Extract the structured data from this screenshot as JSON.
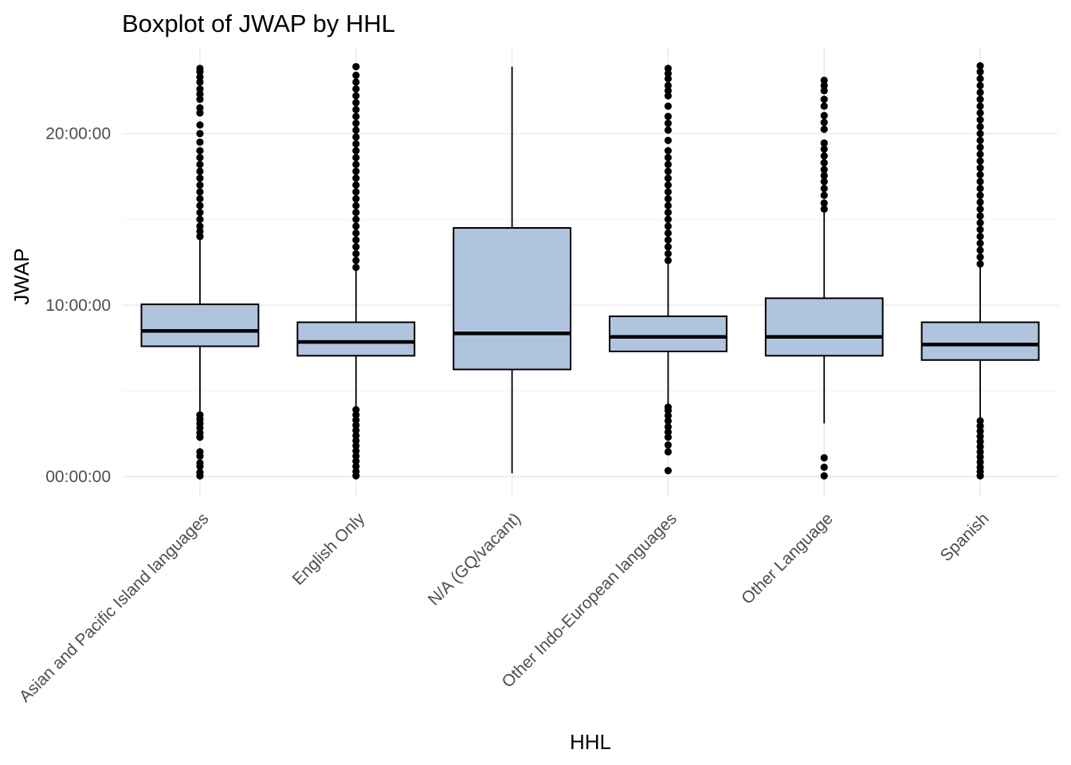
{
  "chart_data": {
    "type": "boxplot",
    "title": "Boxplot of JWAP by HHL",
    "xlabel": "HHL",
    "ylabel": "JWAP",
    "y_unit": "hours",
    "ylim": [
      -1.2,
      25.0
    ],
    "y_ticks": [
      {
        "value": 0,
        "label": "00:00:00"
      },
      {
        "value": 10,
        "label": "10:00:00"
      },
      {
        "value": 20,
        "label": "20:00:00"
      }
    ],
    "grid": true,
    "legend": "none",
    "box_fill": "#b0c4de",
    "box_stroke": "#000000",
    "categories": [
      "Asian and Pacific Island languages",
      "English Only",
      "N/A (GQ/vacant)",
      "Other Indo-European languages",
      "Other Language",
      "Spanish"
    ],
    "boxes": [
      {
        "category": "Asian and Pacific Island languages",
        "whisker_low": 3.7,
        "q1": 7.6,
        "median": 8.5,
        "q3": 10.05,
        "whisker_high": 13.9,
        "outliers": [
          0.05,
          0.25,
          0.6,
          0.8,
          1.2,
          1.45,
          2.3,
          2.55,
          2.85,
          3.1,
          3.35,
          3.6,
          14.0,
          14.3,
          14.6,
          15.0,
          15.4,
          15.8,
          16.2,
          16.6,
          17.0,
          17.4,
          17.8,
          18.2,
          18.6,
          19.0,
          19.5,
          20.0,
          20.5,
          21.2,
          21.5,
          22.0,
          22.3,
          22.6,
          23.0,
          23.3,
          23.6,
          23.8
        ]
      },
      {
        "category": "English Only",
        "whisker_low": 4.0,
        "q1": 7.05,
        "median": 7.85,
        "q3": 9.0,
        "whisker_high": 12.1,
        "outliers": [
          0.05,
          0.3,
          0.6,
          0.9,
          1.2,
          1.5,
          1.8,
          2.1,
          2.4,
          2.7,
          3.0,
          3.3,
          3.6,
          3.9,
          12.2,
          12.6,
          13.0,
          13.4,
          13.8,
          14.2,
          14.6,
          15.0,
          15.4,
          15.8,
          16.2,
          16.6,
          17.0,
          17.4,
          17.8,
          18.2,
          18.6,
          19.0,
          19.4,
          19.8,
          20.2,
          20.6,
          21.0,
          21.4,
          21.8,
          22.2,
          22.6,
          23.0,
          23.4,
          23.9
        ]
      },
      {
        "category": "N/A (GQ/vacant)",
        "whisker_low": 0.2,
        "q1": 6.25,
        "median": 8.35,
        "q3": 14.5,
        "whisker_high": 23.9,
        "outliers": []
      },
      {
        "category": "Other Indo-European languages",
        "whisker_low": 4.1,
        "q1": 7.3,
        "median": 8.15,
        "q3": 9.35,
        "whisker_high": 12.5,
        "outliers": [
          0.35,
          1.45,
          1.85,
          2.3,
          2.6,
          2.9,
          3.25,
          3.55,
          3.85,
          4.05,
          12.6,
          13.0,
          13.4,
          13.8,
          14.2,
          14.6,
          15.0,
          15.4,
          15.8,
          16.2,
          16.6,
          17.0,
          17.4,
          17.8,
          18.2,
          18.6,
          19.0,
          19.6,
          20.2,
          20.6,
          21.0,
          21.6,
          22.2,
          22.5,
          22.8,
          23.2,
          23.5,
          23.8
        ]
      },
      {
        "category": "Other Language",
        "whisker_low": 3.1,
        "q1": 7.05,
        "median": 8.15,
        "q3": 10.4,
        "whisker_high": 15.4,
        "outliers": [
          0.05,
          0.55,
          1.1,
          15.6,
          15.95,
          16.4,
          16.8,
          17.2,
          17.55,
          17.9,
          18.3,
          18.7,
          19.1,
          19.45,
          20.25,
          20.65,
          21.05,
          21.6,
          22.0,
          22.5,
          22.8,
          23.1
        ]
      },
      {
        "category": "Spanish",
        "whisker_low": 3.4,
        "q1": 6.8,
        "median": 7.7,
        "q3": 9.0,
        "whisker_high": 12.3,
        "outliers": [
          0.05,
          0.3,
          0.55,
          0.85,
          1.15,
          1.45,
          1.75,
          2.05,
          2.35,
          2.65,
          2.95,
          3.25,
          12.4,
          12.8,
          13.2,
          13.6,
          14.0,
          14.4,
          14.8,
          15.2,
          15.6,
          16.0,
          16.4,
          16.8,
          17.2,
          17.6,
          18.0,
          18.4,
          18.8,
          19.2,
          19.6,
          20.0,
          20.4,
          20.8,
          21.2,
          21.6,
          22.0,
          22.4,
          22.8,
          23.2,
          23.6,
          23.95
        ]
      }
    ]
  }
}
